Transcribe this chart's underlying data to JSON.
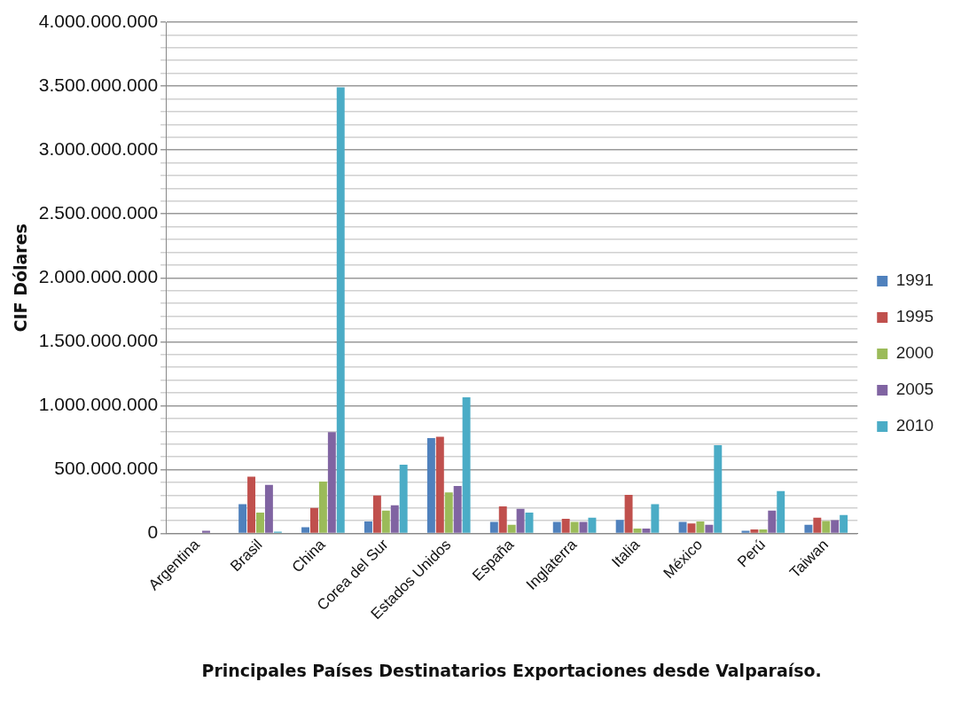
{
  "chart_data": {
    "type": "bar",
    "xlabel": "Principales Países Destinatarios Exportaciones desde Valparaíso.",
    "ylabel": "CIF Dólares",
    "categories": [
      "Argentina",
      "Brasil",
      "China",
      "Corea del Sur",
      "Estados Unidos",
      "España",
      "Inglaterra",
      "Italia",
      "México",
      "Perú",
      "Taiwan"
    ],
    "series": [
      {
        "name": "1991",
        "color": "#4f81bd",
        "values": [
          0,
          229000000,
          49000000,
          95000000,
          746000000,
          90000000,
          90000000,
          107000000,
          90000000,
          22000000,
          68000000
        ]
      },
      {
        "name": "1995",
        "color": "#c0504d",
        "values": [
          0,
          444000000,
          200000000,
          298000000,
          756000000,
          212000000,
          115000000,
          302000000,
          78000000,
          32000000,
          124000000
        ]
      },
      {
        "name": "2000",
        "color": "#9bbb59",
        "values": [
          0,
          163000000,
          407000000,
          180000000,
          322000000,
          68000000,
          90000000,
          39000000,
          95000000,
          32000000,
          98000000
        ]
      },
      {
        "name": "2005",
        "color": "#8064a2",
        "values": [
          22000000,
          380000000,
          793000000,
          220000000,
          371000000,
          193000000,
          90000000,
          39000000,
          68000000,
          180000000,
          105000000
        ]
      },
      {
        "name": "2010",
        "color": "#4bacc6",
        "values": [
          0,
          15000000,
          3490000000,
          539000000,
          1065000000,
          163000000,
          124000000,
          229000000,
          690000000,
          332000000,
          144000000
        ]
      }
    ],
    "ylim": [
      0,
      4000000000
    ],
    "yticks": [
      {
        "value": 0,
        "label": "0"
      },
      {
        "value": 100000000,
        "label": null
      },
      {
        "value": 200000000,
        "label": null
      },
      {
        "value": 300000000,
        "label": null
      },
      {
        "value": 400000000,
        "label": null
      },
      {
        "value": 500000000,
        "label": "500.000.000"
      },
      {
        "value": 600000000,
        "label": null
      },
      {
        "value": 700000000,
        "label": null
      },
      {
        "value": 800000000,
        "label": null
      },
      {
        "value": 900000000,
        "label": null
      },
      {
        "value": 1000000000,
        "label": "1.000.000.000"
      },
      {
        "value": 1100000000,
        "label": null
      },
      {
        "value": 1200000000,
        "label": null
      },
      {
        "value": 1300000000,
        "label": null
      },
      {
        "value": 1400000000,
        "label": null
      },
      {
        "value": 1500000000,
        "label": "1.500.000.000"
      },
      {
        "value": 1600000000,
        "label": null
      },
      {
        "value": 1700000000,
        "label": null
      },
      {
        "value": 1800000000,
        "label": null
      },
      {
        "value": 1900000000,
        "label": null
      },
      {
        "value": 2000000000,
        "label": "2.000.000.000"
      },
      {
        "value": 2100000000,
        "label": null
      },
      {
        "value": 2200000000,
        "label": null
      },
      {
        "value": 2300000000,
        "label": null
      },
      {
        "value": 2400000000,
        "label": null
      },
      {
        "value": 2500000000,
        "label": "2.500.000.000"
      },
      {
        "value": 2600000000,
        "label": null
      },
      {
        "value": 2700000000,
        "label": null
      },
      {
        "value": 2800000000,
        "label": null
      },
      {
        "value": 2900000000,
        "label": null
      },
      {
        "value": 3000000000,
        "label": "3.000.000.000"
      },
      {
        "value": 3100000000,
        "label": null
      },
      {
        "value": 3200000000,
        "label": null
      },
      {
        "value": 3300000000,
        "label": null
      },
      {
        "value": 3400000000,
        "label": null
      },
      {
        "value": 3500000000,
        "label": "3.500.000.000"
      },
      {
        "value": 3600000000,
        "label": null
      },
      {
        "value": 3700000000,
        "label": null
      },
      {
        "value": 3800000000,
        "label": null
      },
      {
        "value": 3900000000,
        "label": null
      },
      {
        "value": 4000000000,
        "label": "4.000.000.000"
      }
    ],
    "grid": "y",
    "legend": "right"
  }
}
